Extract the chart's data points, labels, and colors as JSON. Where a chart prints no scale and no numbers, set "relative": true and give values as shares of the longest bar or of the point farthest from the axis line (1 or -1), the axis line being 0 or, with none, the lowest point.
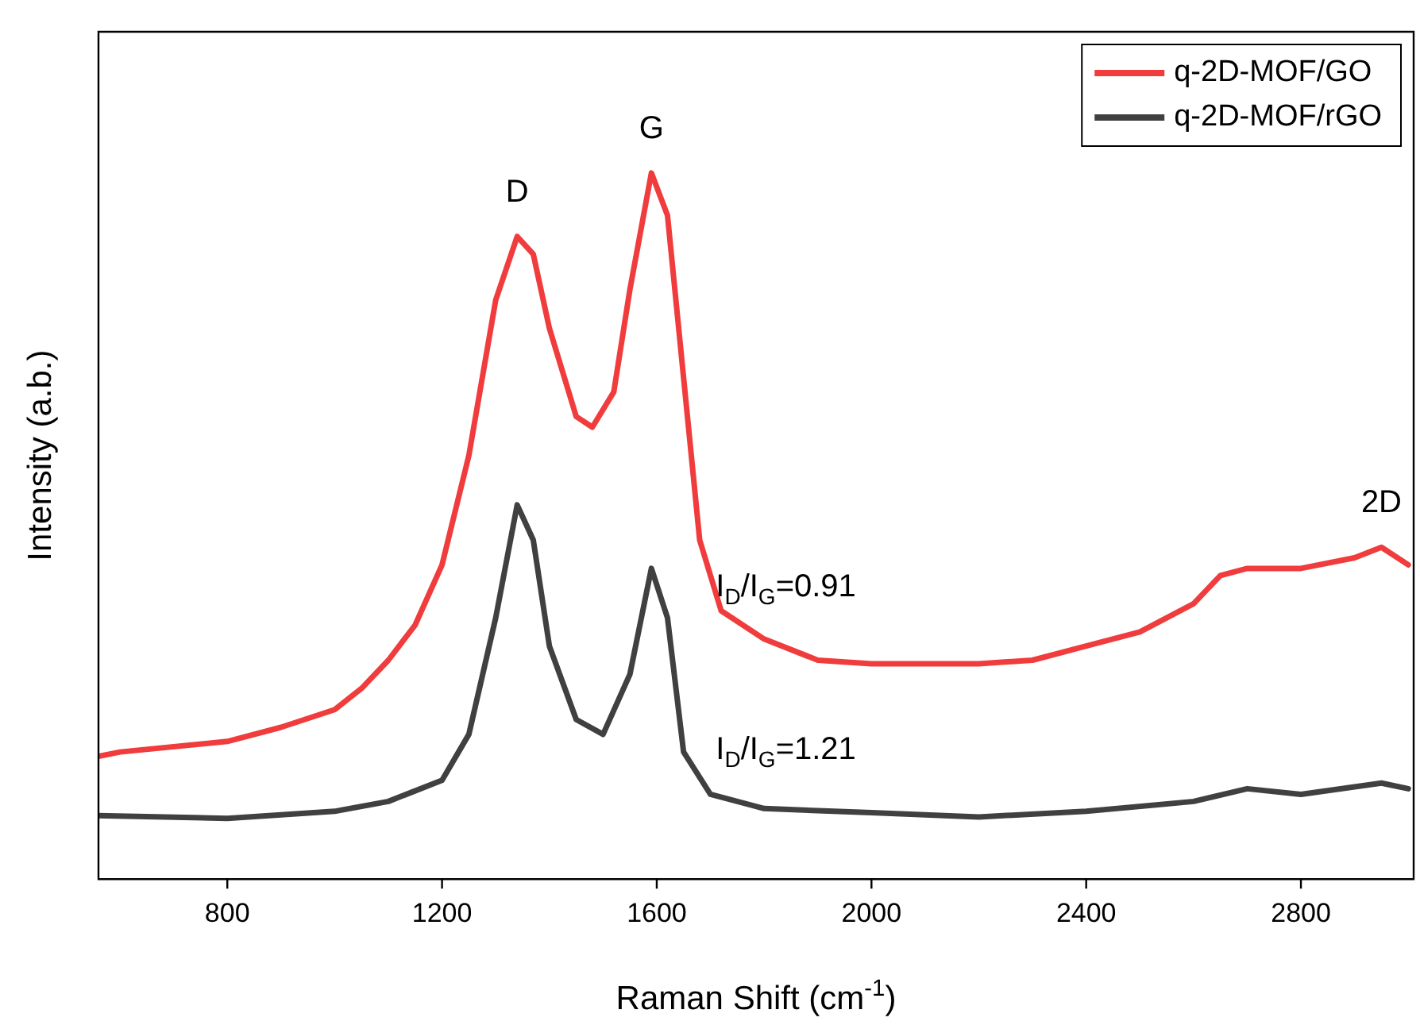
{
  "chart_data": {
    "type": "line",
    "relative": true,
    "xlabel": "Raman Shift (cm$^{-1}$)",
    "ylabel": "Intensity (a.b.)",
    "xlim": [
      560,
      3010
    ],
    "xticks": [
      800,
      1200,
      1600,
      2000,
      2400,
      2800
    ],
    "tick_labels": "x",
    "grid": false,
    "legend": "top right",
    "marker": "none",
    "line_style": "solid",
    "annotations": [
      {
        "text": "D",
        "x": 1340,
        "y": 0.91
      },
      {
        "text": "G",
        "x": 1590,
        "y": 1.0
      },
      {
        "text": "2D",
        "x": 2950,
        "y": 0.47
      },
      "I$_{D}$/I$_{G}$=0.91",
      "I$_{D}$/I$_{G}$=1.21"
    ],
    "series": [
      {
        "name": "q-2D-MOF/GO",
        "color": "#f03c3c",
        "x": [
          560,
          600,
          800,
          900,
          1000,
          1050,
          1100,
          1150,
          1200,
          1250,
          1300,
          1340,
          1370,
          1400,
          1450,
          1480,
          1520,
          1550,
          1590,
          1620,
          1650,
          1680,
          1720,
          1800,
          1900,
          2000,
          2100,
          2200,
          2300,
          2400,
          2500,
          2600,
          2650,
          2700,
          2800,
          2900,
          2950,
          3000
        ],
        "values": [
          0.174,
          0.18,
          0.195,
          0.215,
          0.24,
          0.27,
          0.31,
          0.36,
          0.445,
          0.6,
          0.82,
          0.91,
          0.885,
          0.78,
          0.655,
          0.64,
          0.69,
          0.835,
          1.0,
          0.94,
          0.71,
          0.48,
          0.38,
          0.34,
          0.31,
          0.305,
          0.305,
          0.305,
          0.31,
          0.33,
          0.35,
          0.39,
          0.43,
          0.44,
          0.44,
          0.455,
          0.47,
          0.445
        ]
      },
      {
        "name": "q-2D-MOF/rGO",
        "color": "#404040",
        "x": [
          560,
          800,
          1000,
          1100,
          1200,
          1250,
          1300,
          1340,
          1370,
          1400,
          1450,
          1500,
          1550,
          1590,
          1620,
          1650,
          1700,
          1800,
          2000,
          2200,
          2400,
          2600,
          2700,
          2800,
          2950,
          3000
        ],
        "values": [
          0.09,
          0.086,
          0.096,
          0.11,
          0.14,
          0.205,
          0.37,
          0.53,
          0.48,
          0.33,
          0.226,
          0.205,
          0.29,
          0.44,
          0.37,
          0.18,
          0.12,
          0.1,
          0.094,
          0.088,
          0.096,
          0.11,
          0.128,
          0.12,
          0.136,
          0.128
        ]
      }
    ]
  }
}
